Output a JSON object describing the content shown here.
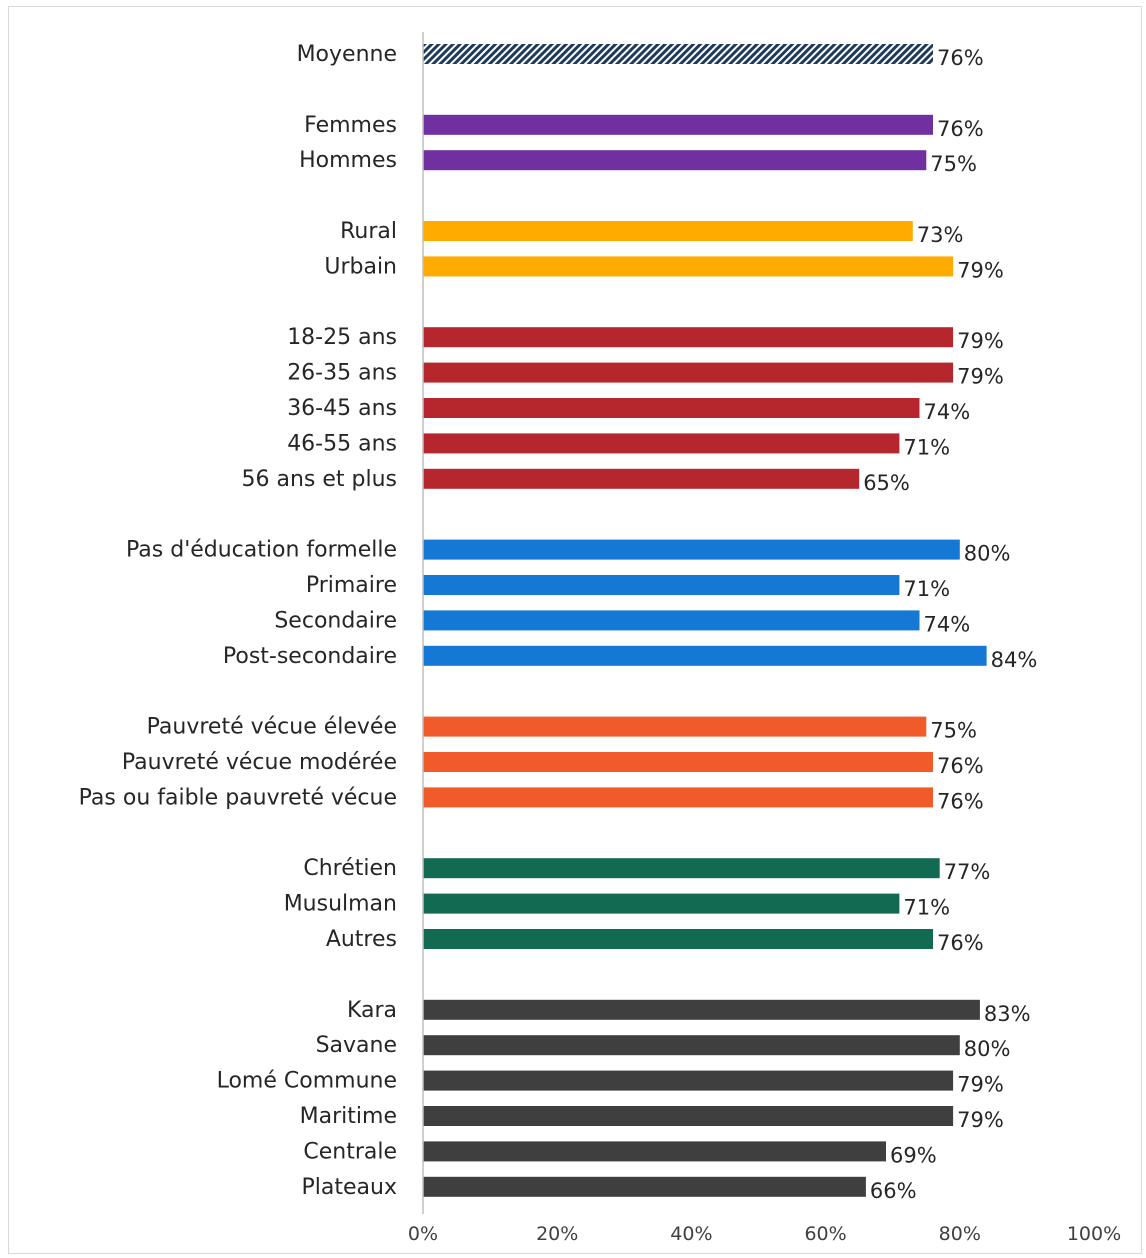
{
  "chart_data": {
    "type": "bar",
    "orientation": "horizontal",
    "xlim": [
      0,
      100
    ],
    "xticks": [
      "0%",
      "20%",
      "40%",
      "60%",
      "80%",
      "100%"
    ],
    "grid": false,
    "legend": "none",
    "groups": [
      {
        "color": "#1f3b5c",
        "pattern": "diagonal-hatch",
        "categories": [
          "Moyenne"
        ],
        "values": [
          76
        ],
        "labels": [
          "76%"
        ]
      },
      {
        "color": "#7030a0",
        "categories": [
          "Femmes",
          "Hommes"
        ],
        "values": [
          76,
          75
        ],
        "labels": [
          "76%",
          "75%"
        ]
      },
      {
        "color": "#ffab00",
        "categories": [
          "Rural",
          "Urbain"
        ],
        "values": [
          73,
          79
        ],
        "labels": [
          "73%",
          "79%"
        ]
      },
      {
        "color": "#b5272d",
        "categories": [
          "18-25 ans",
          "26-35 ans",
          "36-45 ans",
          "46-55 ans",
          "56 ans et plus"
        ],
        "values": [
          79,
          79,
          74,
          71,
          65
        ],
        "labels": [
          "79%",
          "79%",
          "74%",
          "71%",
          "65%"
        ]
      },
      {
        "color": "#1478d4",
        "categories": [
          "Pas d'éducation formelle",
          "Primaire",
          "Secondaire",
          "Post-secondaire"
        ],
        "values": [
          80,
          71,
          74,
          84
        ],
        "labels": [
          "80%",
          "71%",
          "74%",
          "84%"
        ]
      },
      {
        "color": "#f15a29",
        "categories": [
          "Pauvreté vécue élevée",
          "Pauvreté vécue modérée",
          "Pas ou faible pauvreté vécue"
        ],
        "values": [
          75,
          76,
          76
        ],
        "labels": [
          "75%",
          "76%",
          "76%"
        ]
      },
      {
        "color": "#136a52",
        "categories": [
          "Chrétien",
          "Musulman",
          "Autres"
        ],
        "values": [
          77,
          71,
          76
        ],
        "labels": [
          "77%",
          "71%",
          "76%"
        ]
      },
      {
        "color": "#3f3f3f",
        "categories": [
          "Kara",
          "Savane",
          "Lomé Commune",
          "Maritime",
          "Centrale",
          "Plateaux"
        ],
        "values": [
          83,
          80,
          79,
          79,
          69,
          66
        ],
        "labels": [
          "83%",
          "80%",
          "79%",
          "79%",
          "69%",
          "66%"
        ]
      }
    ]
  }
}
